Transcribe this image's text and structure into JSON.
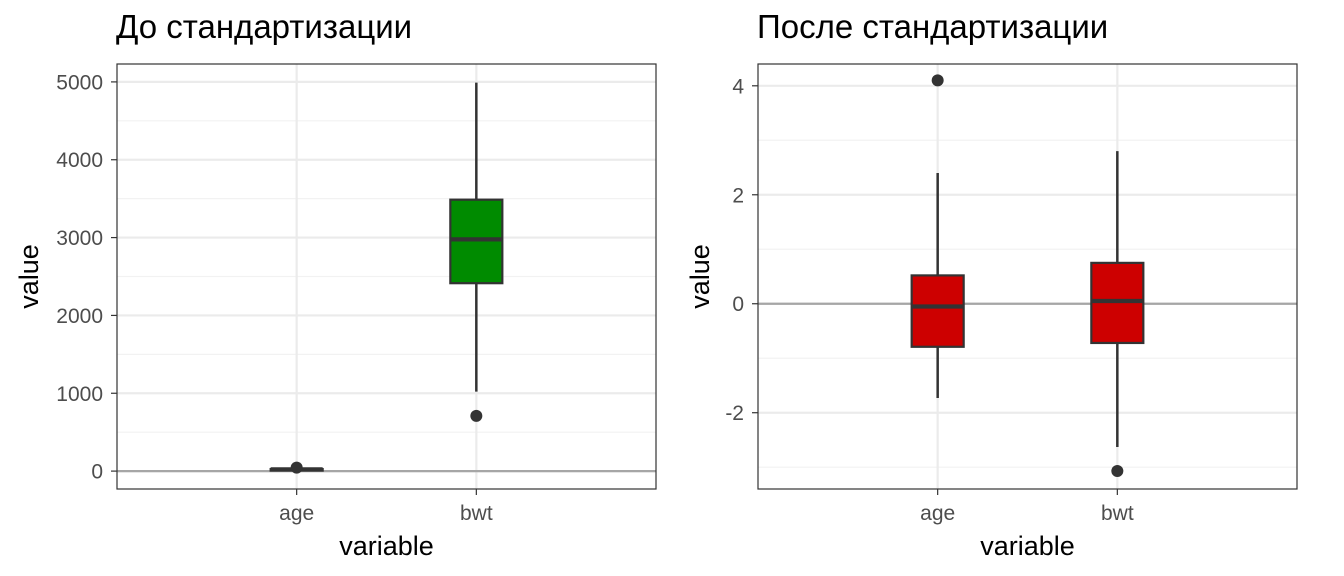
{
  "chart_data": [
    {
      "type": "boxplot",
      "title": "До стандартизации",
      "xlabel": "variable",
      "ylabel": "value",
      "categories": [
        "age",
        "bwt"
      ],
      "ylim": [
        -230,
        5230
      ],
      "yticks": [
        0,
        1000,
        2000,
        3000,
        4000,
        5000
      ],
      "yticklabels": [
        "0",
        "1000",
        "2000",
        "3000",
        "4000",
        "5000"
      ],
      "hline": 0,
      "fill": "#008b00",
      "boxes": [
        {
          "category": "age",
          "whisker_low": 14,
          "q1": 19,
          "median": 23,
          "q3": 26,
          "whisker_high": 36,
          "outliers": [
            45
          ]
        },
        {
          "category": "bwt",
          "whisker_low": 1021,
          "q1": 2414,
          "median": 2977,
          "q3": 3487,
          "whisker_high": 4990,
          "outliers": [
            709
          ]
        }
      ]
    },
    {
      "type": "boxplot",
      "title": "После стандартизации",
      "xlabel": "variable",
      "ylabel": "value",
      "categories": [
        "age",
        "bwt"
      ],
      "ylim": [
        -3.4,
        4.4
      ],
      "yticks": [
        -2,
        0,
        2,
        4
      ],
      "yticklabels": [
        "-2",
        "0",
        "2",
        "4"
      ],
      "hline": 0,
      "fill": "#cd0000",
      "boxes": [
        {
          "category": "age",
          "whisker_low": -1.73,
          "q1": -0.79,
          "median": -0.05,
          "q3": 0.52,
          "whisker_high": 2.4,
          "outliers": [
            4.1
          ]
        },
        {
          "category": "bwt",
          "whisker_low": -2.63,
          "q1": -0.72,
          "median": 0.05,
          "q3": 0.75,
          "whisker_high": 2.8,
          "outliers": [
            -3.07
          ]
        }
      ]
    }
  ]
}
